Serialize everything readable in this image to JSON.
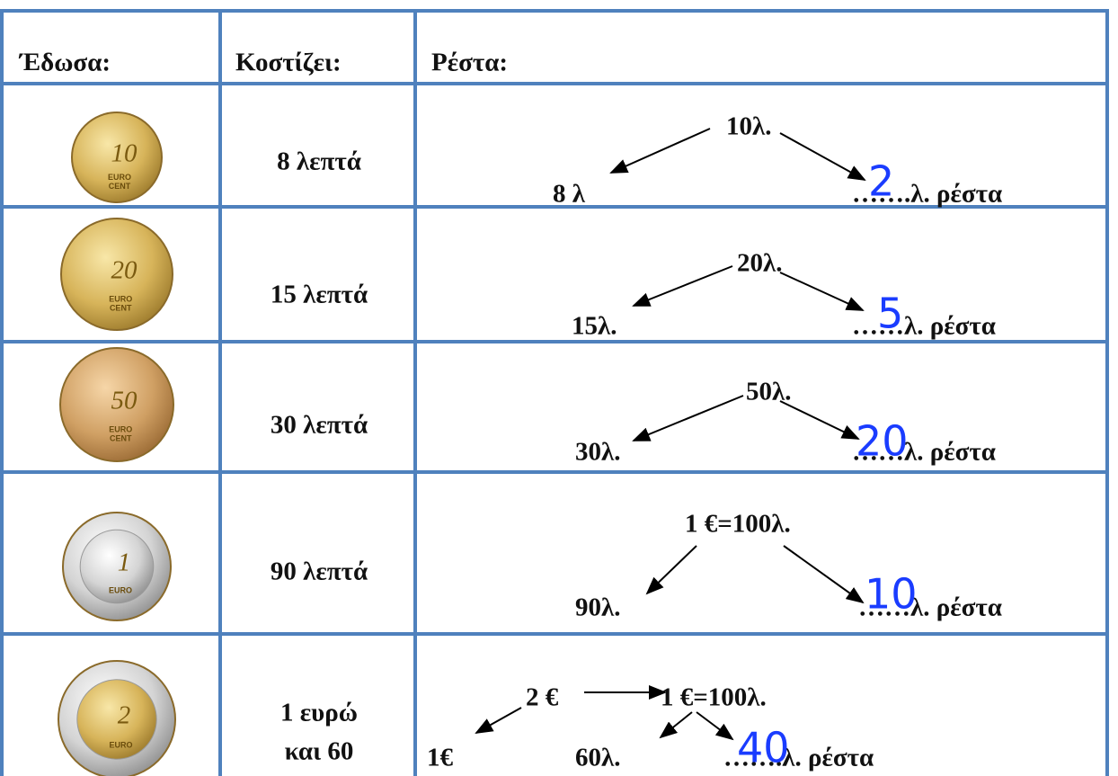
{
  "table": {
    "headers": [
      "Έδωσα:",
      "Κοστίζει:",
      "Ρέστα:"
    ],
    "rows": [
      {
        "coin": {
          "number": "10",
          "text": [
            "EURO",
            "CENT"
          ]
        },
        "cost": [
          "8 λεπτά"
        ],
        "change": {
          "given": "10λ.",
          "cost": "8 λ",
          "change": "…….λ. ρέστα",
          "answer": "2"
        }
      },
      {
        "coin": {
          "number": "20",
          "text": [
            "EURO",
            "CENT"
          ]
        },
        "cost": [
          "15 λεπτά"
        ],
        "change": {
          "given": "20λ.",
          "cost": "15λ.",
          "change": "……λ. ρέστα",
          "answer": "5"
        }
      },
      {
        "coin": {
          "number": "50",
          "text": [
            "EURO",
            "CENT"
          ]
        },
        "cost": [
          "30 λεπτά"
        ],
        "change": {
          "given": "50λ.",
          "cost": "30λ.",
          "change": "……λ. ρέστα",
          "answer": "20"
        }
      },
      {
        "coin": {
          "number": "1",
          "text": [
            "EURO"
          ]
        },
        "cost": [
          "90 λεπτά"
        ],
        "change": {
          "given": "1 €=100λ.",
          "cost": "90λ.",
          "change": "……λ. ρέστα",
          "answer": "10"
        }
      },
      {
        "coin": {
          "number": "2",
          "text": [
            "EURO"
          ]
        },
        "cost": [
          "1 ευρώ",
          "και 60"
        ],
        "change": {
          "given": "2 €",
          "converted": "1 €=100λ.",
          "euro": "1€",
          "cost": "60λ.",
          "change": "…….λ. ρέστα",
          "answer": "40"
        }
      }
    ]
  }
}
